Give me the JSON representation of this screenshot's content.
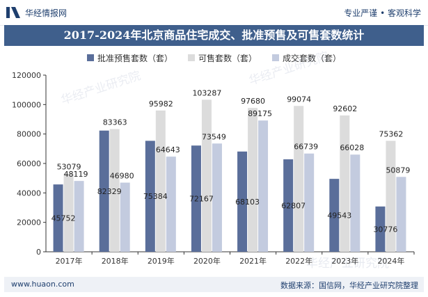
{
  "header": {
    "brand": "华经情报网",
    "slogan": "专业严谨 • 客观科学"
  },
  "footer": {
    "url": "www.huaon.com",
    "source": "数据来源：国信网，华经产业研究院整理"
  },
  "watermark": "华经产业研究院",
  "colors": {
    "title_band": "#3f5f8c",
    "series": [
      "#5a6e9a",
      "#dcdcdc",
      "#c3cbdf"
    ]
  },
  "chart_data": {
    "type": "bar",
    "title": "2017-2024年北京商品住宅成交、批准预售及可售套数统计",
    "categories": [
      "2017年",
      "2018年",
      "2019年",
      "2020年",
      "2021年",
      "2022年",
      "2023年",
      "2024年"
    ],
    "series": [
      {
        "name": "批准预售套数（套）",
        "values": [
          45752,
          82329,
          75384,
          72167,
          68103,
          62807,
          49543,
          30776
        ]
      },
      {
        "name": "可售套数（套）",
        "values": [
          53079,
          83363,
          95982,
          103287,
          97680,
          99074,
          92602,
          75362
        ]
      },
      {
        "name": "成交套数（套）",
        "values": [
          48119,
          46980,
          64643,
          73549,
          89175,
          66739,
          66028,
          50879
        ]
      }
    ],
    "ylim": [
      0,
      120000
    ],
    "yticks": [
      0,
      20000,
      40000,
      60000,
      80000,
      100000,
      120000
    ],
    "legend": "top",
    "grid": false
  }
}
